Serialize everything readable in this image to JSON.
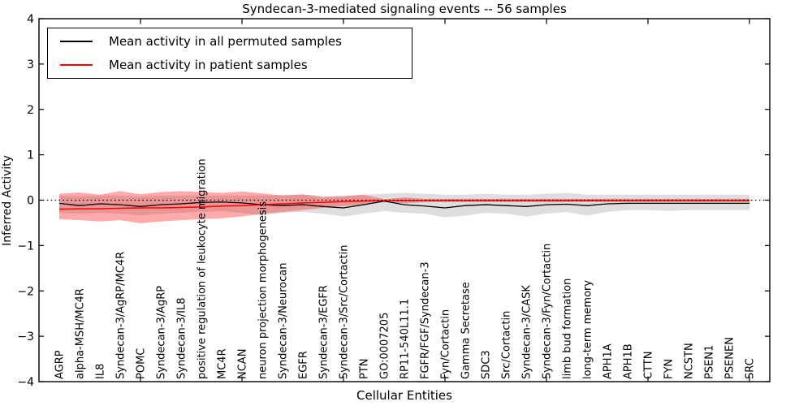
{
  "title": "Syndecan-3-mediated signaling events -- 56 samples",
  "legend": {
    "items": [
      {
        "label": "Mean activity in all permuted samples",
        "color": "#000000"
      },
      {
        "label": "Mean activity in patient samples",
        "color": "#ff0000"
      }
    ]
  },
  "colors": {
    "permuted_line": "#000000",
    "patient_line": "#ff0000",
    "permuted_band": "rgba(0,0,0,0.13)",
    "patient_band": "rgba(255,0,0,0.33)",
    "zero_line": "#000000",
    "frame": "#000000"
  },
  "chart_data": {
    "type": "line",
    "title": "Syndecan-3-mediated signaling events -- 56 samples",
    "xlabel": "Cellular Entities",
    "ylabel": "Inferred Activity",
    "ylim": [
      -4,
      4
    ],
    "x_domain": [
      0,
      36
    ],
    "xticks_values": [
      5,
      10,
      15,
      20,
      25,
      30,
      35
    ],
    "yticks": [
      {
        "value": 4,
        "label": "4"
      },
      {
        "value": 3,
        "label": "3"
      },
      {
        "value": 2,
        "label": "2"
      },
      {
        "value": 1,
        "label": "1"
      },
      {
        "value": 0,
        "label": "0"
      },
      {
        "value": -1,
        "label": "−1"
      },
      {
        "value": -2,
        "label": "−2"
      },
      {
        "value": -3,
        "label": "−3"
      },
      {
        "value": -4,
        "label": "−4"
      }
    ],
    "grid": false,
    "legend_position": "upper left",
    "zero_line": {
      "value": 0,
      "style": "dotted",
      "color": "#000000"
    },
    "categories": [
      "AGRP",
      "alpha-MSH/MC4R",
      "IL8",
      "Syndecan-3/AgRP/MC4R",
      "POMC",
      "Syndecan-3/AgRP",
      "Syndecan-3/IL8",
      "positive regulation of leukocyte migration",
      "MC4R",
      "NCAN",
      "neuron projection morphogenesis",
      "Syndecan-3/Neurocan",
      "EGFR",
      "Syndecan-3/EGFR",
      "Syndecan-3/Src/Cortactin",
      "PTN",
      "GO:0007205",
      "RP11-540L11.1",
      "FGFR/FGF/Syndecan-3",
      "Fyn/Cortactin",
      "Gamma Secretase",
      "SDC3",
      "Src/Cortactin",
      "Syndecan-3/CASK",
      "Syndecan-3/Fyn/Cortactin",
      "limb bud formation",
      "long-term memory",
      "APH1A",
      "APH1B",
      "CTTN",
      "FYN",
      "NCSTN",
      "PSEN1",
      "PSENEN",
      "SRC"
    ],
    "series": [
      {
        "name": "Mean activity in all permuted samples",
        "color": "#000000",
        "band_color": "rgba(0,0,0,0.13)",
        "values": [
          -0.07,
          -0.12,
          -0.08,
          -0.1,
          -0.14,
          -0.1,
          -0.08,
          -0.05,
          -0.04,
          -0.06,
          -0.1,
          -0.12,
          -0.1,
          -0.14,
          -0.17,
          -0.1,
          -0.02,
          -0.1,
          -0.13,
          -0.17,
          -0.12,
          -0.1,
          -0.12,
          -0.14,
          -0.1,
          -0.09,
          -0.12,
          -0.08,
          -0.07,
          -0.07,
          -0.07,
          -0.07,
          -0.07,
          -0.07,
          -0.07
        ],
        "band_upper": [
          0.1,
          0.08,
          0.1,
          0.1,
          0.08,
          0.1,
          0.1,
          0.1,
          0.1,
          0.1,
          0.1,
          0.12,
          0.12,
          0.1,
          0.08,
          0.12,
          0.14,
          0.16,
          0.14,
          0.12,
          0.12,
          0.14,
          0.12,
          0.12,
          0.14,
          0.16,
          0.12,
          0.12,
          0.12,
          0.12,
          0.12,
          0.12,
          0.12,
          0.12,
          0.12
        ],
        "band_lower": [
          -0.28,
          -0.3,
          -0.28,
          -0.3,
          -0.34,
          -0.3,
          -0.28,
          -0.26,
          -0.24,
          -0.28,
          -0.34,
          -0.28,
          -0.26,
          -0.3,
          -0.36,
          -0.3,
          -0.24,
          -0.28,
          -0.3,
          -0.38,
          -0.34,
          -0.28,
          -0.3,
          -0.36,
          -0.3,
          -0.26,
          -0.34,
          -0.26,
          -0.22,
          -0.22,
          -0.24,
          -0.22,
          -0.22,
          -0.22,
          -0.22
        ]
      },
      {
        "name": "Mean activity in patient samples",
        "color": "#ff0000",
        "band_color": "rgba(255,0,0,0.33)",
        "values": [
          -0.2,
          -0.19,
          -0.19,
          -0.18,
          -0.17,
          -0.17,
          -0.16,
          -0.15,
          -0.13,
          -0.12,
          -0.1,
          -0.08,
          -0.06,
          -0.05,
          -0.03,
          -0.02,
          -0.01,
          -0.01,
          -0.01,
          -0.01,
          -0.01,
          -0.01,
          -0.01,
          -0.01,
          -0.01,
          -0.01,
          -0.01,
          -0.01,
          -0.01,
          -0.01,
          -0.01,
          -0.01,
          -0.01,
          -0.01,
          -0.01
        ],
        "band_upper": [
          0.14,
          0.17,
          0.12,
          0.2,
          0.13,
          0.18,
          0.2,
          0.18,
          0.16,
          0.19,
          0.15,
          0.1,
          0.13,
          0.06,
          0.09,
          0.12,
          0.02,
          0.06,
          0.03,
          0.03,
          0.03,
          0.03,
          0.03,
          0.03,
          0.03,
          0.03,
          0.03,
          0.03,
          0.03,
          0.03,
          0.03,
          0.03,
          0.03,
          0.03,
          0.03
        ],
        "band_lower": [
          -0.42,
          -0.44,
          -0.47,
          -0.44,
          -0.51,
          -0.47,
          -0.44,
          -0.42,
          -0.4,
          -0.36,
          -0.3,
          -0.26,
          -0.22,
          -0.17,
          -0.13,
          -0.1,
          -0.04,
          -0.07,
          -0.04,
          -0.04,
          -0.04,
          -0.04,
          -0.04,
          -0.04,
          -0.04,
          -0.04,
          -0.04,
          -0.04,
          -0.04,
          -0.04,
          -0.04,
          -0.04,
          -0.04,
          -0.04,
          -0.04
        ]
      }
    ]
  }
}
